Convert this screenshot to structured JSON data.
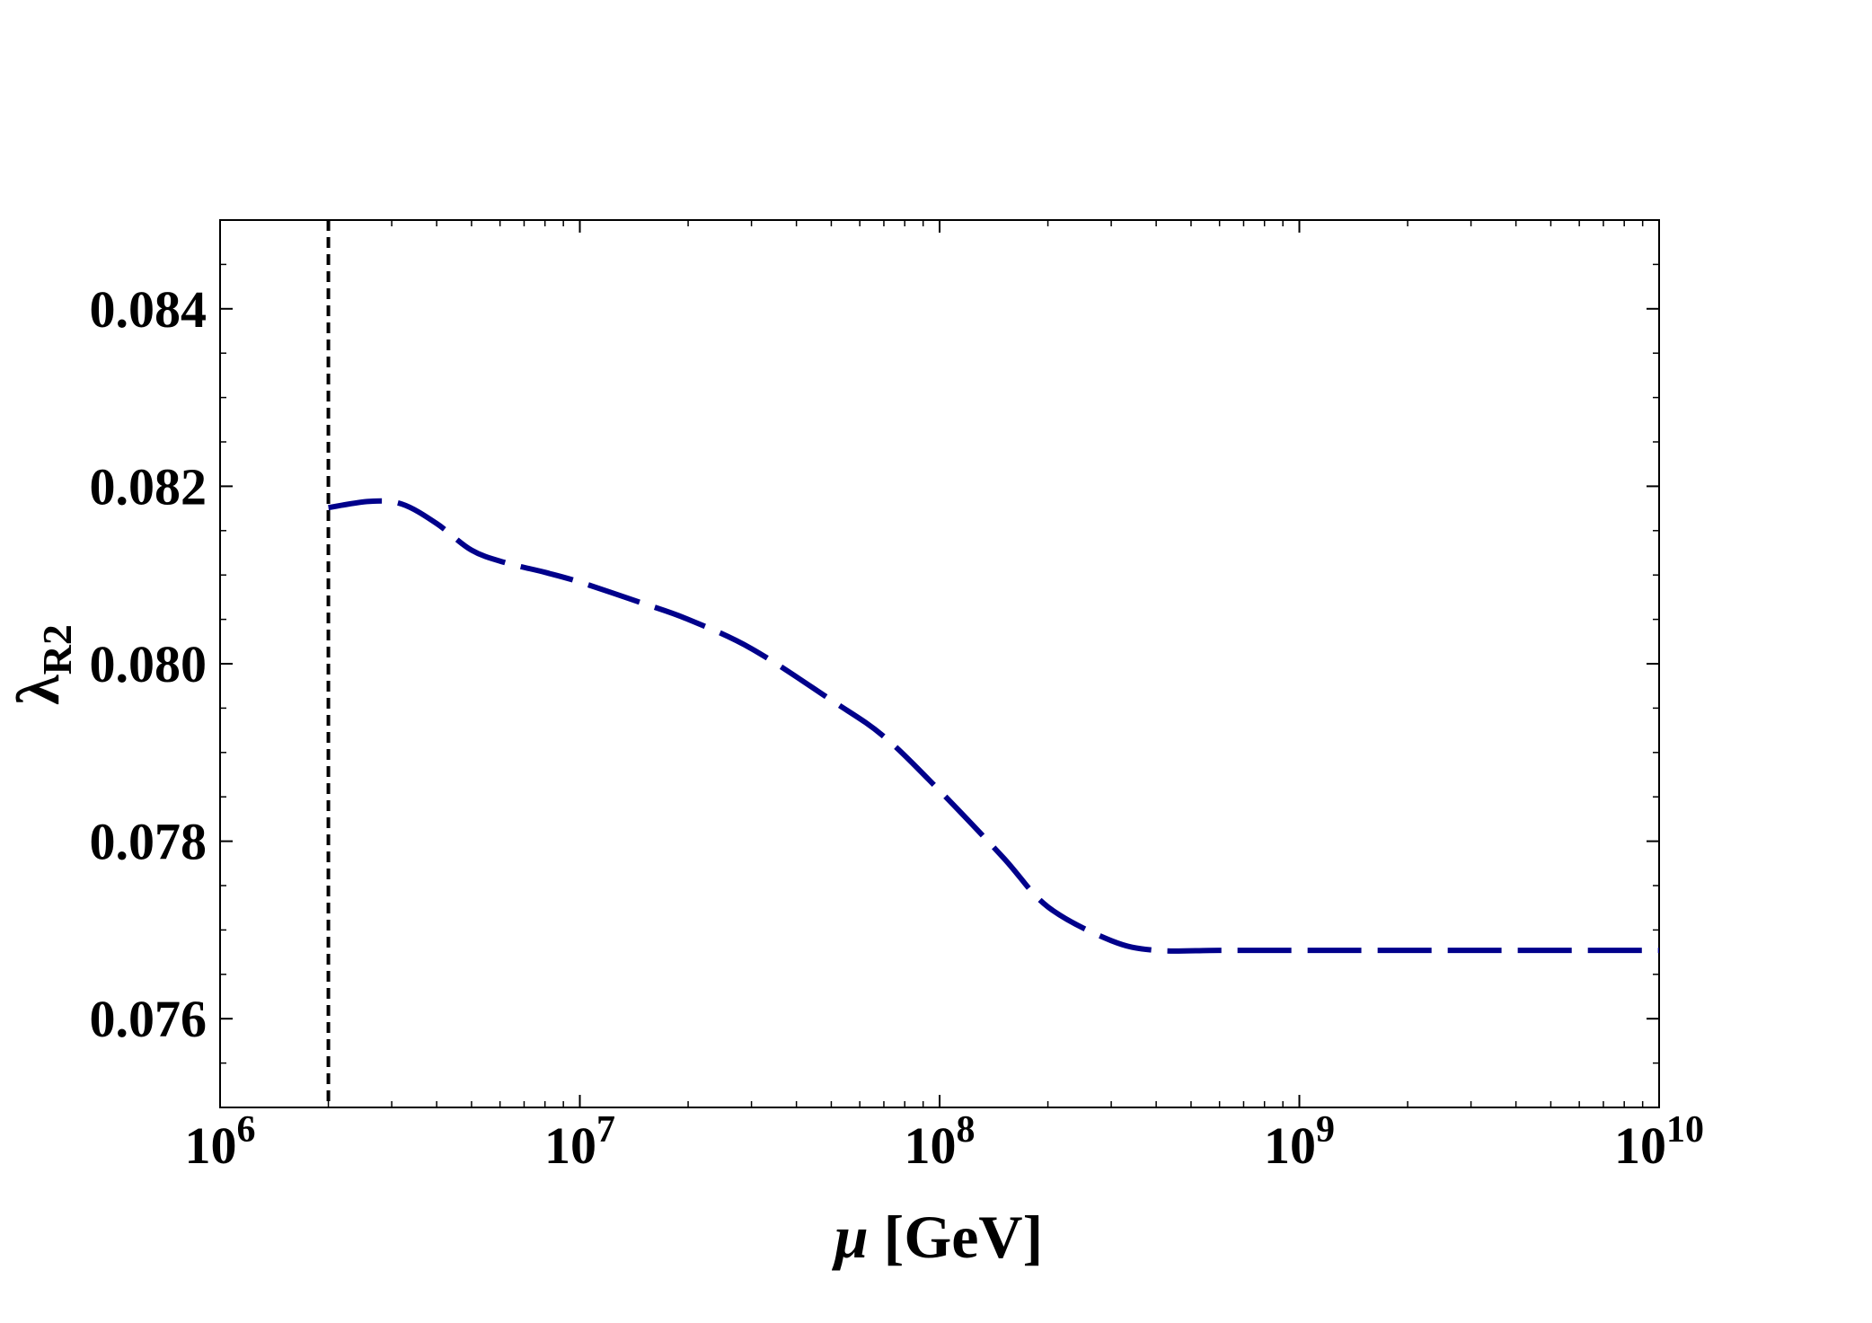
{
  "chart_data": {
    "type": "line",
    "title": "",
    "xlabel": {
      "symbol": "μ",
      "unit": " [GeV]"
    },
    "ylabel": {
      "symbol": "λ",
      "subscript": "R2"
    },
    "x_scale": "log",
    "xlim": [
      1000000,
      10000000000
    ],
    "ylim": [
      0.075,
      0.085
    ],
    "x_ticks": [
      {
        "value": 1000000,
        "base": "10",
        "exp": "6"
      },
      {
        "value": 10000000,
        "base": "10",
        "exp": "7"
      },
      {
        "value": 100000000,
        "base": "10",
        "exp": "8"
      },
      {
        "value": 1000000000,
        "base": "10",
        "exp": "9"
      },
      {
        "value": 10000000000,
        "base": "10",
        "exp": "10"
      }
    ],
    "y_ticks": [
      "0.076",
      "0.078",
      "0.080",
      "0.082",
      "0.084"
    ],
    "grid": false,
    "legend": "none",
    "threshold_line": {
      "x": 2000000,
      "style": "dashed",
      "color": "#000000"
    },
    "series": [
      {
        "color": "#00008b",
        "style": "dashed",
        "x": [
          2000000,
          2600000,
          3200000,
          4000000,
          5000000,
          6200000,
          8000000,
          10000000,
          15000000,
          20000000,
          30000000,
          50000000,
          70000000,
          100000000,
          150000000,
          200000000,
          300000000,
          400000000,
          600000000,
          1000000000,
          3000000000,
          10000000000
        ],
        "y": [
          0.08176,
          0.08183,
          0.0818,
          0.08158,
          0.08128,
          0.08114,
          0.08103,
          0.08092,
          0.08068,
          0.0805,
          0.08017,
          0.07959,
          0.07918,
          0.07857,
          0.07782,
          0.07726,
          0.07688,
          0.07677,
          0.07677,
          0.07677,
          0.07677,
          0.07677
        ]
      }
    ]
  }
}
